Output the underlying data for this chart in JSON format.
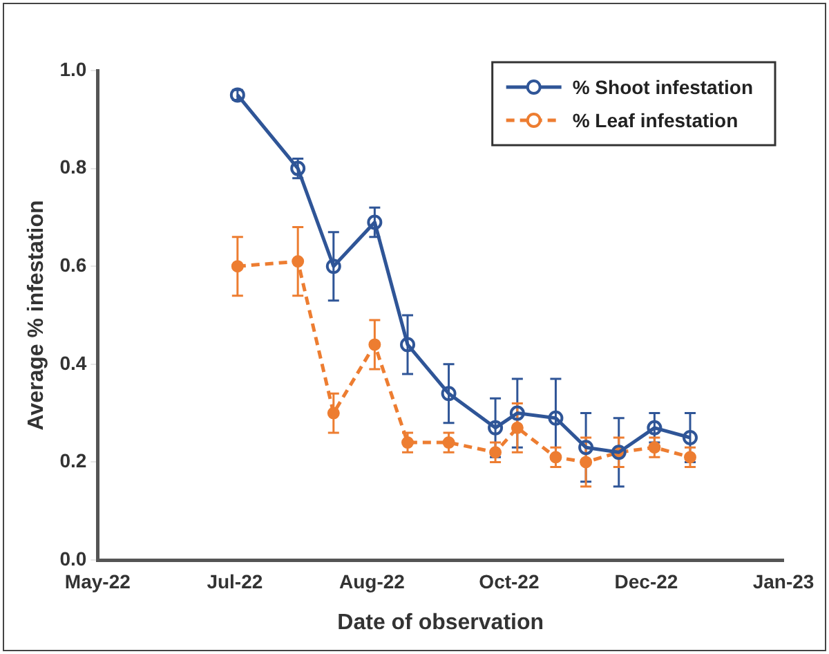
{
  "chart_data": {
    "type": "line",
    "xlabel": "Date of observation",
    "ylabel": "Average % infestation",
    "x": [
      "2022-07-08",
      "2022-07-30",
      "2022-08-12",
      "2022-08-27",
      "2022-09-08",
      "2022-09-23",
      "2022-10-10",
      "2022-10-18",
      "2022-11-01",
      "2022-11-12",
      "2022-11-24",
      "2022-12-07",
      "2022-12-20"
    ],
    "series": [
      {
        "name": "% Shoot infestation",
        "color": "#2f5597",
        "line_style": "solid",
        "values": [
          0.95,
          0.8,
          0.6,
          0.69,
          0.44,
          0.34,
          0.27,
          0.3,
          0.29,
          0.23,
          0.22,
          0.27,
          0.25
        ],
        "errors": [
          0.01,
          0.02,
          0.07,
          0.03,
          0.06,
          0.06,
          0.06,
          0.07,
          0.08,
          0.07,
          0.07,
          0.03,
          0.05
        ]
      },
      {
        "name": "% Leaf infestation",
        "color": "#ed7d31",
        "line_style": "dashed",
        "values": [
          0.6,
          0.61,
          0.3,
          0.44,
          0.24,
          0.24,
          0.22,
          0.27,
          0.21,
          0.2,
          0.22,
          0.23,
          0.21
        ],
        "errors": [
          0.06,
          0.07,
          0.04,
          0.05,
          0.02,
          0.02,
          0.02,
          0.05,
          0.02,
          0.05,
          0.03,
          0.02,
          0.02
        ]
      }
    ],
    "xlim": [
      "2022-05-18",
      "2023-01-23"
    ],
    "xticks": [
      {
        "value": "2022-05-18",
        "label": "May-22"
      },
      {
        "value": "2022-07-07",
        "label": "Jul-22"
      },
      {
        "value": "2022-08-26",
        "label": "Aug-22"
      },
      {
        "value": "2022-10-15",
        "label": "Oct-22"
      },
      {
        "value": "2022-12-04",
        "label": "Dec-22"
      },
      {
        "value": "2023-01-23",
        "label": "Jan-23"
      }
    ],
    "ylim": [
      0,
      1
    ],
    "yticks": [
      {
        "value": 0,
        "label": "0.0"
      },
      {
        "value": 0.2,
        "label": "0.2"
      },
      {
        "value": 0.4,
        "label": "0.4"
      },
      {
        "value": 0.6,
        "label": "0.6"
      },
      {
        "value": 0.8,
        "label": "0.8"
      },
      {
        "value": 1,
        "label": "1.0"
      }
    ],
    "grid": false,
    "legend": "top right",
    "marker": "circle"
  }
}
